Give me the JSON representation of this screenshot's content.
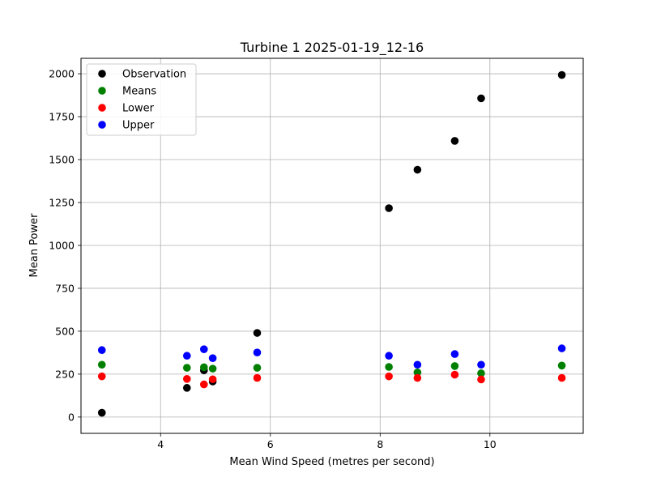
{
  "chart_data": {
    "type": "scatter",
    "title": "Turbine 1 2025-01-19_12-16",
    "xlabel": "Mean Wind Speed (metres per second)",
    "ylabel": "Mean Power",
    "xlim": [
      2.55,
      11.7
    ],
    "ylim": [
      -95,
      2090
    ],
    "xticks": [
      4,
      6,
      8,
      10
    ],
    "yticks": [
      0,
      250,
      500,
      750,
      1000,
      1250,
      1500,
      1750,
      2000
    ],
    "grid": true,
    "legend_position": "top-left",
    "x": [
      2.93,
      4.48,
      4.79,
      4.95,
      5.76,
      8.16,
      8.68,
      9.36,
      9.84,
      11.31
    ],
    "series": [
      {
        "name": "Observation",
        "color": "#000000",
        "values": [
          25,
          170,
          272,
          207,
          490,
          1217,
          1441,
          1609,
          1857,
          1993
        ]
      },
      {
        "name": "Means",
        "color": "#008000",
        "values": [
          305,
          287,
          290,
          282,
          287,
          292,
          260,
          297,
          255,
          300
        ]
      },
      {
        "name": "Lower",
        "color": "#ff0000",
        "values": [
          237,
          222,
          190,
          220,
          228,
          237,
          228,
          247,
          219,
          228
        ]
      },
      {
        "name": "Upper",
        "color": "#0000ff",
        "values": [
          390,
          357,
          395,
          343,
          376,
          357,
          305,
          367,
          305,
          400
        ]
      }
    ]
  }
}
